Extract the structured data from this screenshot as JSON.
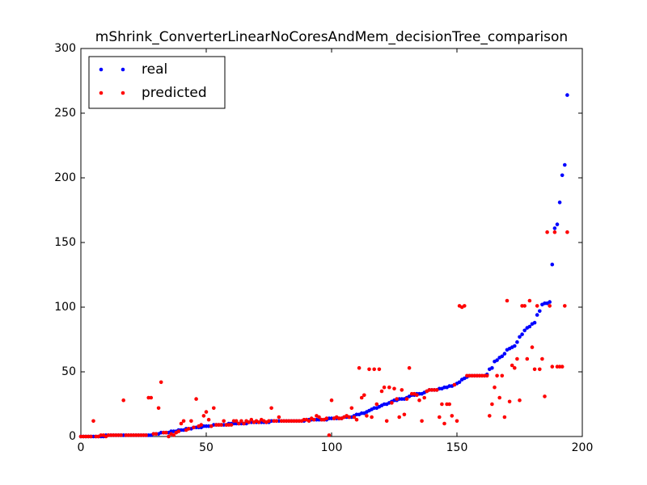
{
  "chart_data": {
    "type": "scatter",
    "title": "mShrink_ConverterLinearNoCoresAndMem_decisionTree_comparison",
    "x": [
      0,
      1,
      2,
      3,
      4,
      5,
      6,
      7,
      8,
      9,
      10,
      11,
      12,
      13,
      14,
      15,
      16,
      17,
      18,
      19,
      20,
      21,
      22,
      23,
      24,
      25,
      26,
      27,
      28,
      29,
      30,
      31,
      32,
      33,
      34,
      35,
      36,
      37,
      38,
      39,
      40,
      41,
      42,
      43,
      44,
      45,
      46,
      47,
      48,
      49,
      50,
      51,
      52,
      53,
      54,
      55,
      56,
      57,
      58,
      59,
      60,
      61,
      62,
      63,
      64,
      65,
      66,
      67,
      68,
      69,
      70,
      71,
      72,
      73,
      74,
      75,
      76,
      77,
      78,
      79,
      80,
      81,
      82,
      83,
      84,
      85,
      86,
      87,
      88,
      89,
      90,
      91,
      92,
      93,
      94,
      95,
      96,
      97,
      98,
      99,
      100,
      101,
      102,
      103,
      104,
      105,
      106,
      107,
      108,
      109,
      110,
      111,
      112,
      113,
      114,
      115,
      116,
      117,
      118,
      119,
      120,
      121,
      122,
      123,
      124,
      125,
      126,
      127,
      128,
      129,
      130,
      131,
      132,
      133,
      134,
      135,
      136,
      137,
      138,
      139,
      140,
      141,
      142,
      143,
      144,
      145,
      146,
      147,
      148,
      149,
      150,
      151,
      152,
      153,
      154,
      155,
      156,
      157,
      158,
      159,
      160,
      161,
      162,
      163,
      164,
      165,
      166,
      167,
      168,
      169,
      170,
      171,
      172,
      173,
      174,
      175,
      176,
      177,
      178,
      179,
      180,
      181,
      182,
      183,
      184,
      185,
      186,
      187,
      188,
      189,
      190,
      191,
      192,
      193,
      194
    ],
    "series": [
      {
        "name": "real",
        "color": "#0000ff",
        "values": [
          0,
          0,
          0,
          0,
          0,
          0,
          0,
          0,
          0,
          0,
          1,
          1,
          1,
          1,
          1,
          1,
          1,
          1,
          1,
          1,
          1,
          1,
          1,
          1,
          1,
          1,
          1,
          1,
          1,
          2,
          2,
          2,
          3,
          3,
          3,
          3,
          4,
          4,
          4,
          5,
          5,
          5,
          6,
          6,
          6,
          7,
          7,
          7,
          7,
          8,
          8,
          8,
          8,
          9,
          9,
          9,
          9,
          9,
          9,
          10,
          10,
          10,
          10,
          10,
          10,
          10,
          10,
          11,
          11,
          11,
          11,
          11,
          11,
          11,
          11,
          11,
          12,
          12,
          12,
          12,
          12,
          12,
          12,
          12,
          12,
          12,
          12,
          12,
          12,
          12,
          13,
          13,
          13,
          13,
          13,
          13,
          13,
          13,
          13,
          14,
          14,
          14,
          14,
          14,
          14,
          15,
          15,
          15,
          15,
          16,
          17,
          17,
          18,
          18,
          19,
          20,
          21,
          22,
          22,
          23,
          24,
          25,
          25,
          26,
          27,
          28,
          28,
          29,
          29,
          29,
          30,
          31,
          32,
          32,
          33,
          33,
          33,
          34,
          35,
          36,
          36,
          36,
          36,
          37,
          37,
          38,
          38,
          39,
          39,
          40,
          41,
          42,
          44,
          45,
          46,
          47,
          47,
          47,
          47,
          47,
          47,
          47,
          48,
          52,
          53,
          58,
          59,
          61,
          62,
          64,
          67,
          68,
          69,
          70,
          73,
          77,
          79,
          82,
          84,
          85,
          87,
          88,
          94,
          97,
          102,
          103,
          103,
          104,
          133,
          161,
          164,
          181,
          202,
          210,
          264
        ]
      },
      {
        "name": "predicted",
        "color": "#ff0000",
        "values": [
          0,
          0,
          0,
          0,
          0,
          12,
          0,
          0,
          1,
          1,
          0,
          1,
          1,
          1,
          1,
          1,
          1,
          28,
          1,
          1,
          1,
          1,
          1,
          1,
          1,
          1,
          1,
          30,
          30,
          2,
          2,
          22,
          42,
          3,
          3,
          0,
          2,
          1,
          3,
          4,
          10,
          12,
          5,
          6,
          12,
          7,
          29,
          8,
          9,
          16,
          19,
          13,
          8,
          22,
          9,
          9,
          9,
          12,
          9,
          9,
          9,
          12,
          12,
          10,
          12,
          10,
          12,
          11,
          13,
          11,
          12,
          11,
          13,
          12,
          11,
          12,
          22,
          12,
          12,
          15,
          12,
          12,
          12,
          12,
          12,
          12,
          12,
          12,
          12,
          13,
          13,
          12,
          14,
          13,
          16,
          15,
          13,
          13,
          14,
          1,
          28,
          14,
          15,
          14,
          14,
          15,
          16,
          15,
          22,
          15,
          13,
          53,
          30,
          32,
          16,
          52,
          15,
          52,
          25,
          52,
          35,
          38,
          12,
          38,
          26,
          37,
          29,
          15,
          36,
          17,
          29,
          53,
          33,
          33,
          32,
          28,
          12,
          30,
          35,
          36,
          36,
          36,
          36,
          15,
          25,
          10,
          25,
          25,
          16,
          40,
          12,
          101,
          100,
          101,
          47,
          47,
          47,
          47,
          47,
          47,
          47,
          47,
          47,
          16,
          25,
          38,
          47,
          30,
          47,
          15,
          105,
          27,
          55,
          53,
          60,
          28,
          101,
          101,
          60,
          105,
          69,
          52,
          101,
          52,
          60,
          31,
          158,
          101,
          54,
          158,
          54,
          54,
          54,
          101,
          158
        ]
      }
    ],
    "xlim": [
      0,
      200
    ],
    "ylim": [
      0,
      300
    ],
    "xticks": [
      0,
      50,
      100,
      150,
      200
    ],
    "yticks": [
      0,
      50,
      100,
      150,
      200,
      250,
      300
    ],
    "grid": false,
    "legend": "upper left"
  }
}
